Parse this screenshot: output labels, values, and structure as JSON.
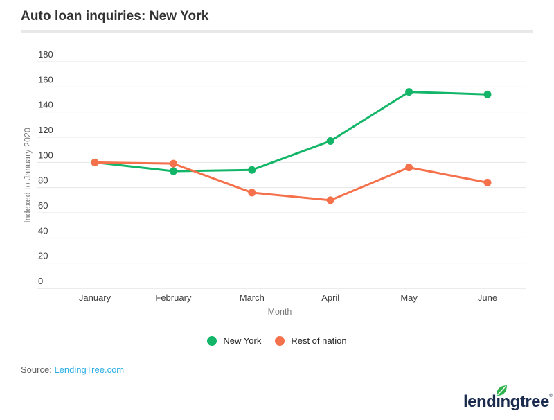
{
  "header": {
    "title": "Auto loan inquiries: New York"
  },
  "chart_data": {
    "type": "line",
    "title": "Auto loan inquiries: New York",
    "categories": [
      "January",
      "February",
      "March",
      "April",
      "May",
      "June"
    ],
    "series": [
      {
        "name": "New York",
        "color": "#13b568",
        "values": [
          100,
          93,
          94,
          117,
          156,
          154
        ]
      },
      {
        "name": "Rest of nation",
        "color": "#f5714c",
        "values": [
          100,
          99,
          76,
          70,
          96,
          84
        ]
      }
    ],
    "xlabel": "Month",
    "ylabel": "Indexed to January 2020",
    "ylim": [
      0,
      180
    ],
    "ytick_step": 20,
    "grid": true,
    "legend_position": "bottom",
    "marker": "circle",
    "colors": {
      "gridline": "#e6e6e6",
      "baseline": "#d9d9d9",
      "tick_label": "#3f3f3f"
    }
  },
  "footer": {
    "source_label": "Source:",
    "source_link": "LendingTree.com"
  },
  "logo": {
    "text": "lendıngtree",
    "registered": "®",
    "leaf_color": "#2eb24c"
  }
}
